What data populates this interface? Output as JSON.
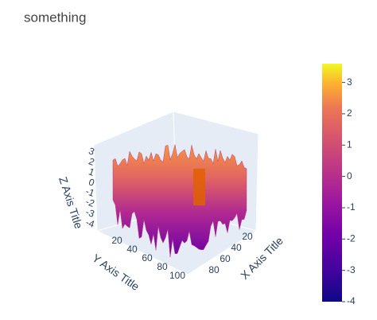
{
  "chart_data": {
    "type": "surface",
    "title": "something",
    "x_label": "X Axis Title",
    "y_label": "Y Axis Title",
    "z_label": "Z Axis Title",
    "xticks": [
      20,
      40,
      60,
      80
    ],
    "yticks": [
      20,
      40,
      60,
      80,
      100
    ],
    "zticks": [
      3,
      2,
      1,
      0,
      -1,
      -2,
      -3,
      -4
    ],
    "colorbar": {
      "colorscale": "plasma",
      "clim": [
        -4,
        3.6
      ],
      "ticks": [
        3,
        2,
        1,
        0,
        -1,
        -2,
        -3,
        -4
      ]
    }
  }
}
